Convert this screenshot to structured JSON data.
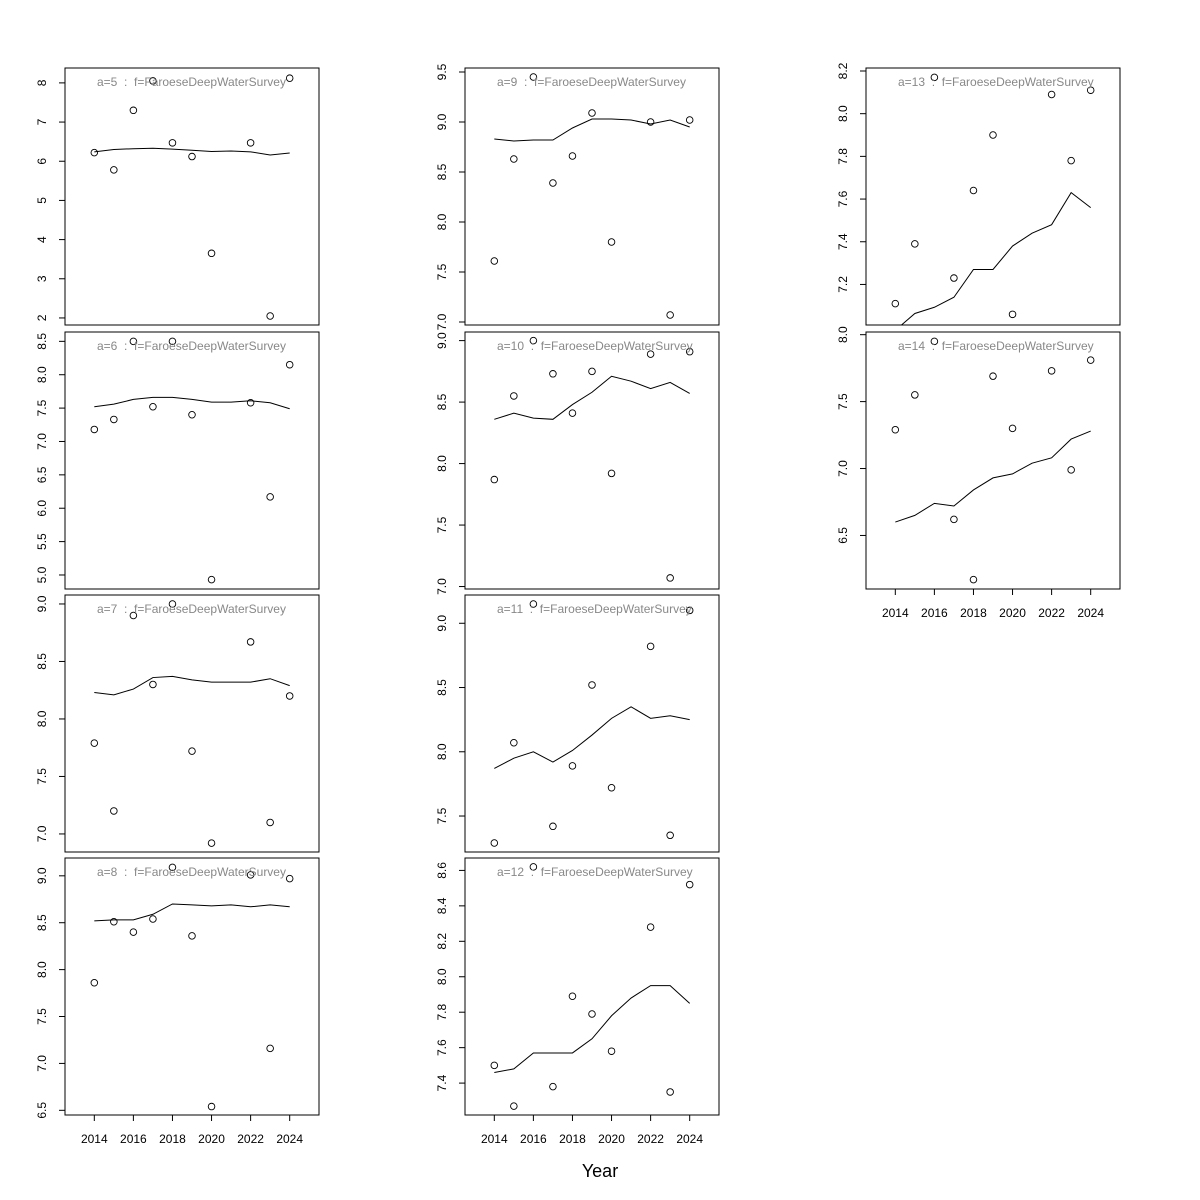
{
  "xlabel": "Year",
  "chart_data": [
    {
      "type": "scatter",
      "title": "a=5  :  f=FaroeseDeepWaterSurvey",
      "x": [
        2014,
        2015,
        2016,
        2017,
        2018,
        2019,
        2020,
        2021,
        2022,
        2023,
        2024
      ],
      "values": [
        6.22,
        5.78,
        7.3,
        8.05,
        6.47,
        6.12,
        3.65,
        null,
        6.47,
        2.05,
        8.12
      ],
      "line_values": [
        6.24,
        6.3,
        6.32,
        6.33,
        6.31,
        6.28,
        6.25,
        6.26,
        6.24,
        6.16,
        6.21
      ],
      "xlim": [
        2012.5,
        2025.5
      ],
      "ylim": [
        1.82,
        8.38
      ],
      "yticks": [
        2,
        3,
        4,
        5,
        6,
        7,
        8
      ]
    },
    {
      "type": "scatter",
      "title": "a=6  :  f=FaroeseDeepWaterSurvey",
      "x": [
        2014,
        2015,
        2016,
        2017,
        2018,
        2019,
        2020,
        2021,
        2022,
        2023,
        2024
      ],
      "values": [
        7.18,
        7.33,
        8.5,
        7.52,
        8.5,
        7.4,
        4.93,
        null,
        7.58,
        6.17,
        8.15
      ],
      "line_values": [
        7.52,
        7.56,
        7.63,
        7.66,
        7.66,
        7.63,
        7.59,
        7.59,
        7.61,
        7.58,
        7.49
      ],
      "xlim": [
        2012.5,
        2025.5
      ],
      "ylim": [
        4.79,
        8.64
      ],
      "yticks": [
        {
          "value": 5,
          "label": "5.0"
        },
        5.5,
        {
          "value": 6,
          "label": "6.0"
        },
        6.5,
        {
          "value": 7,
          "label": "7.0"
        },
        7.5,
        {
          "value": 8,
          "label": "8.0"
        },
        8.5
      ]
    },
    {
      "type": "scatter",
      "title": "a=7  :  f=FaroeseDeepWaterSurvey",
      "x": [
        2014,
        2015,
        2016,
        2017,
        2018,
        2019,
        2020,
        2021,
        2022,
        2023,
        2024
      ],
      "values": [
        7.79,
        7.2,
        8.9,
        8.3,
        9.0,
        7.72,
        6.92,
        null,
        8.67,
        7.1,
        8.2
      ],
      "line_values": [
        8.23,
        8.21,
        8.26,
        8.36,
        8.37,
        8.34,
        8.32,
        8.32,
        8.32,
        8.35,
        8.29
      ],
      "xlim": [
        2012.5,
        2025.5
      ],
      "ylim": [
        6.843,
        9.078
      ],
      "yticks": [
        {
          "value": 7,
          "label": "7.0"
        },
        7.5,
        {
          "value": 8,
          "label": "8.0"
        },
        8.5,
        {
          "value": 9,
          "label": "9.0"
        }
      ]
    },
    {
      "type": "scatter",
      "title": "a=8  :  f=FaroeseDeepWaterSurvey",
      "x": [
        2014,
        2015,
        2016,
        2017,
        2018,
        2019,
        2020,
        2021,
        2022,
        2023,
        2024
      ],
      "values": [
        7.86,
        8.51,
        8.4,
        8.54,
        9.09,
        8.36,
        6.54,
        null,
        9.01,
        7.16,
        8.97
      ],
      "line_values": [
        8.52,
        8.53,
        8.53,
        8.59,
        8.7,
        8.69,
        8.68,
        8.69,
        8.67,
        8.69,
        8.67
      ],
      "xlim": [
        2012.5,
        2025.5
      ],
      "ylim": [
        6.45,
        9.19
      ],
      "yticks": [
        6.5,
        {
          "value": 7,
          "label": "7.0"
        },
        7.5,
        {
          "value": 8,
          "label": "8.0"
        },
        8.5,
        {
          "value": 9,
          "label": "9.0"
        }
      ],
      "xticks": [
        2014,
        2016,
        2018,
        2020,
        2022,
        2024
      ]
    },
    {
      "type": "scatter",
      "title": "a=9  :  f=FaroeseDeepWaterSurvey",
      "x": [
        2014,
        2015,
        2016,
        2017,
        2018,
        2019,
        2020,
        2021,
        2022,
        2023,
        2024
      ],
      "values": [
        7.61,
        8.63,
        9.45,
        8.39,
        8.66,
        9.09,
        7.8,
        null,
        9.0,
        7.07,
        9.02
      ],
      "line_values": [
        8.83,
        8.81,
        8.82,
        8.82,
        8.94,
        9.03,
        9.03,
        9.02,
        8.98,
        9.02,
        8.95
      ],
      "xlim": [
        2012.5,
        2025.5
      ],
      "ylim": [
        6.97,
        9.54
      ],
      "yticks": [
        {
          "value": 7,
          "label": "7.0"
        },
        7.5,
        {
          "value": 8,
          "label": "8.0"
        },
        8.5,
        {
          "value": 9,
          "label": "9.0"
        },
        9.5
      ]
    },
    {
      "type": "scatter",
      "title": "a=10  :  f=FaroeseDeepWaterSurvey",
      "x": [
        2014,
        2015,
        2016,
        2017,
        2018,
        2019,
        2020,
        2021,
        2022,
        2023,
        2024
      ],
      "values": [
        7.87,
        8.55,
        9.0,
        8.73,
        8.41,
        8.75,
        7.92,
        null,
        8.89,
        7.07,
        8.91
      ],
      "line_values": [
        8.36,
        8.41,
        8.37,
        8.36,
        8.48,
        8.58,
        8.71,
        8.67,
        8.61,
        8.66,
        8.57
      ],
      "xlim": [
        2012.5,
        2025.5
      ],
      "ylim": [
        6.98,
        9.07
      ],
      "yticks": [
        {
          "value": 7,
          "label": "7.0"
        },
        7.5,
        {
          "value": 8,
          "label": "8.0"
        },
        8.5,
        {
          "value": 9,
          "label": "9.0"
        }
      ]
    },
    {
      "type": "scatter",
      "title": "a=11  :  f=FaroeseDeepWaterSurvey",
      "x": [
        2014,
        2015,
        2016,
        2017,
        2018,
        2019,
        2020,
        2021,
        2022,
        2023,
        2024
      ],
      "values": [
        7.29,
        8.07,
        9.15,
        7.42,
        7.89,
        8.52,
        7.72,
        null,
        8.82,
        7.35,
        9.1
      ],
      "line_values": [
        7.87,
        7.95,
        8.0,
        7.92,
        8.01,
        8.13,
        8.26,
        8.35,
        8.26,
        8.28,
        8.25
      ],
      "xlim": [
        2012.5,
        2025.5
      ],
      "ylim": [
        7.22,
        9.22
      ],
      "yticks": [
        7.5,
        {
          "value": 8,
          "label": "8.0"
        },
        8.5,
        {
          "value": 9,
          "label": "9.0"
        }
      ]
    },
    {
      "type": "scatter",
      "title": "a=12  :  f=FaroeseDeepWaterSurvey",
      "x": [
        2014,
        2015,
        2016,
        2017,
        2018,
        2019,
        2020,
        2021,
        2022,
        2023,
        2024
      ],
      "values": [
        7.5,
        7.27,
        8.62,
        7.38,
        7.89,
        7.79,
        7.58,
        null,
        8.28,
        7.35,
        8.52
      ],
      "line_values": [
        7.46,
        7.48,
        7.57,
        7.57,
        7.57,
        7.65,
        7.78,
        7.88,
        7.95,
        7.95,
        7.85
      ],
      "xlim": [
        2012.5,
        2025.5
      ],
      "ylim": [
        7.22,
        8.67
      ],
      "yticks": [
        7.4,
        7.6,
        7.8,
        {
          "value": 8,
          "label": "8.0"
        },
        8.2,
        8.4,
        8.6
      ],
      "xticks": [
        2014,
        2016,
        2018,
        2020,
        2022,
        2024
      ]
    },
    {
      "type": "scatter",
      "title": "a=13  :  f=FaroeseDeepWaterSurvey",
      "x": [
        2014,
        2015,
        2016,
        2017,
        2018,
        2019,
        2020,
        2021,
        2022,
        2023,
        2024
      ],
      "values": [
        7.11,
        7.39,
        8.17,
        7.23,
        7.64,
        7.9,
        7.06,
        null,
        8.09,
        7.78,
        8.11
      ],
      "line_values": [
        6.985,
        7.064,
        7.093,
        7.14,
        7.27,
        7.27,
        7.38,
        7.44,
        7.48,
        7.63,
        7.56
      ],
      "xlim": [
        2012.5,
        2025.5
      ],
      "ylim": [
        7.01,
        8.214
      ],
      "yticks": [
        7.2,
        7.4,
        7.6,
        7.8,
        {
          "value": 8,
          "label": "8.0"
        },
        8.2
      ]
    },
    {
      "type": "scatter",
      "title": "a=14  :  f=FaroeseDeepWaterSurvey",
      "x": [
        2014,
        2015,
        2016,
        2017,
        2018,
        2019,
        2020,
        2021,
        2022,
        2023,
        2024
      ],
      "values": [
        7.29,
        7.55,
        7.95,
        6.62,
        6.17,
        7.69,
        7.3,
        null,
        7.73,
        6.99,
        7.81
      ],
      "line_values": [
        6.6,
        6.65,
        6.74,
        6.72,
        6.84,
        6.93,
        6.96,
        7.04,
        7.08,
        7.22,
        7.28
      ],
      "xlim": [
        2012.5,
        2025.5
      ],
      "ylim": [
        6.1,
        8.02
      ],
      "yticks": [
        6.5,
        {
          "value": 7,
          "label": "7.0"
        },
        7.5,
        {
          "value": 8,
          "label": "8.0"
        }
      ],
      "xticks": [
        2014,
        2016,
        2018,
        2020,
        2022,
        2024
      ]
    }
  ]
}
